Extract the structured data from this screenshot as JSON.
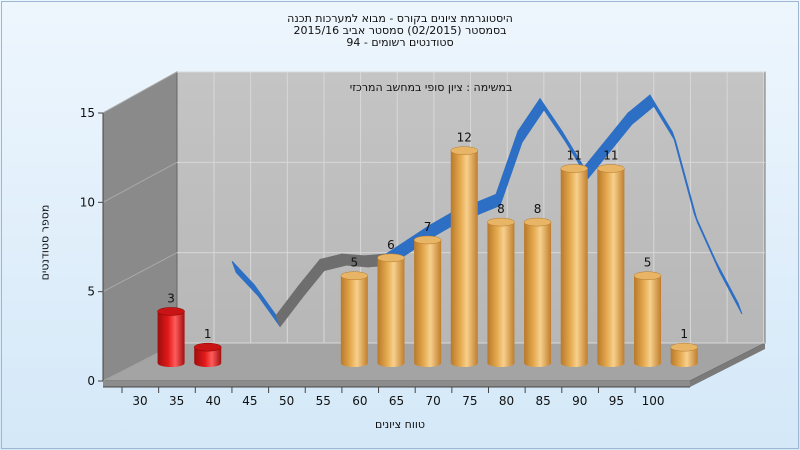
{
  "chart_data": {
    "type": "bar",
    "title_lines": [
      "היסטוגרמת ציונים בקורס - מבוא למערכות תכנה",
      "בסמסטר  (02/2015)  סמסטר אביב 2015/16",
      "סטודנטים רשומים - 94"
    ],
    "subtitle": "במשימה : ציון סופי במחשב המרכזי",
    "xlabel": "טווח ציונים",
    "ylabel": "מספר סטודנטים",
    "x_ticks": [
      "30",
      "35",
      "40",
      "45",
      "50",
      "55",
      "60",
      "65",
      "70",
      "75",
      "80",
      "85",
      "90",
      "95",
      "100"
    ],
    "y_ticks": [
      "0",
      "5",
      "10",
      "15"
    ],
    "ylim": [
      0,
      15
    ],
    "grid": true,
    "bars": [
      {
        "x": 30,
        "value": 3,
        "label": "3",
        "status": "fail"
      },
      {
        "x": 35,
        "value": 1,
        "label": "1",
        "status": "fail"
      },
      {
        "x": 55,
        "value": 5,
        "label": "5",
        "status": "pass"
      },
      {
        "x": 60,
        "value": 6,
        "label": "6",
        "status": "pass"
      },
      {
        "x": 65,
        "value": 7,
        "label": "7",
        "status": "pass"
      },
      {
        "x": 70,
        "value": 12,
        "label": "12",
        "status": "pass"
      },
      {
        "x": 75,
        "value": 8,
        "label": "8",
        "status": "pass"
      },
      {
        "x": 80,
        "value": 8,
        "label": "8",
        "status": "pass"
      },
      {
        "x": 85,
        "value": 11,
        "label": "11",
        "status": "pass"
      },
      {
        "x": 90,
        "value": 11,
        "label": "11",
        "status": "pass"
      },
      {
        "x": 95,
        "value": 5,
        "label": "5",
        "status": "pass"
      },
      {
        "x": 100,
        "value": 1,
        "label": "1",
        "status": "pass"
      }
    ],
    "trend_line": {
      "x": [
        35,
        38,
        41,
        44,
        47,
        50,
        53,
        56,
        59,
        62,
        65,
        68,
        71,
        74,
        77,
        80,
        83,
        86,
        89,
        92,
        95,
        98,
        101,
        104
      ],
      "y": [
        4.3,
        3.0,
        1.3,
        2.9,
        4.4,
        4.7,
        4.6,
        4.7,
        5.5,
        6.3,
        7.0,
        7.5,
        8.0,
        11.5,
        13.3,
        11.5,
        9.5,
        11.0,
        12.5,
        13.5,
        11.5,
        7.0,
        4.3,
        2.0
      ]
    },
    "colors": {
      "pass_bar": "#e4a94e",
      "fail_bar": "#e31a1a",
      "trend_line": "#2d6fc4",
      "back_wall": "#b7b7b7",
      "side_wall": "#8a8a8a",
      "floor": "#a4a4a4"
    }
  }
}
